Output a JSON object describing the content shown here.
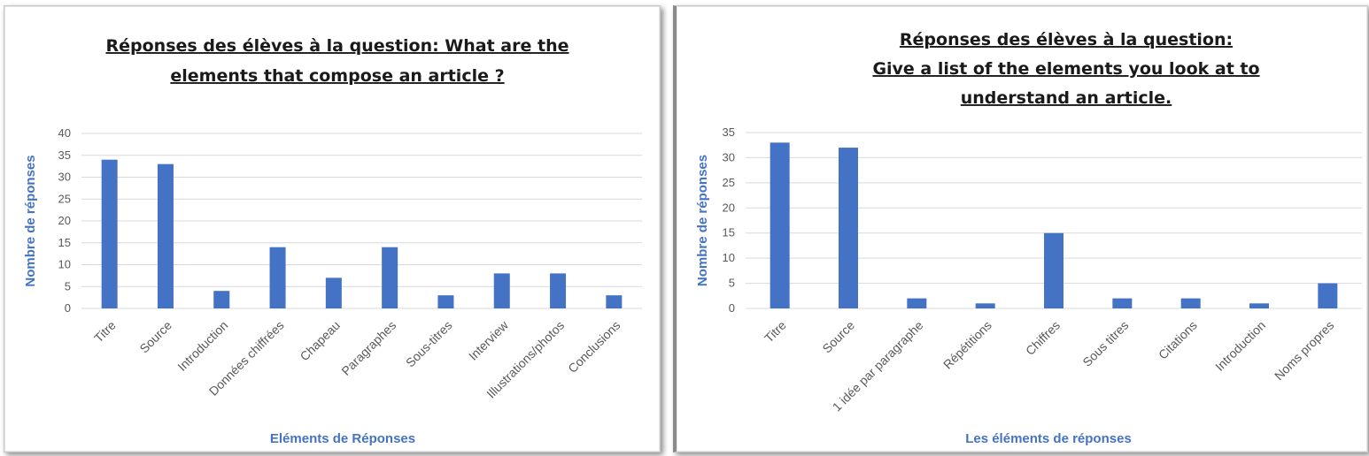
{
  "chart_data": [
    {
      "type": "bar",
      "title_lines": [
        "Réponses des élèves à la question: What are the",
        "elements that compose an article ?"
      ],
      "xlabel": "Eléments de Réponses",
      "ylabel": "Nombre  de réponses",
      "ylim": [
        0,
        40
      ],
      "yticks": [
        0,
        5,
        10,
        15,
        20,
        25,
        30,
        35,
        40
      ],
      "categories": [
        "Titre",
        "Source",
        "Introduction",
        "Données chiffrées",
        "Chapeau",
        "Paragraphes",
        "Sous-titres",
        "Interview",
        "Illustrations/photos",
        "Conclusions"
      ],
      "values": [
        34,
        33,
        4,
        14,
        7,
        14,
        3,
        8,
        8,
        3
      ],
      "bar_color": "#4472c4",
      "grid": true,
      "legend": "none"
    },
    {
      "type": "bar",
      "title_lines": [
        "Réponses des élèves à la question:",
        "Give a list of the elements you look at to",
        "understand an article."
      ],
      "xlabel": "Les éléments de réponses",
      "ylabel": "Nombre de réponses",
      "ylim": [
        0,
        35
      ],
      "yticks": [
        0,
        5,
        10,
        15,
        20,
        25,
        30,
        35
      ],
      "categories": [
        "Titre",
        "Source",
        "1 idée par paragraphe",
        "Répétitions",
        "Chiffres",
        "Sous titres",
        "Citations",
        "Introduction",
        "Noms propres"
      ],
      "values": [
        33,
        32,
        2,
        1,
        15,
        2,
        2,
        1,
        5
      ],
      "bar_color": "#4472c4",
      "grid": true,
      "legend": "none"
    }
  ]
}
